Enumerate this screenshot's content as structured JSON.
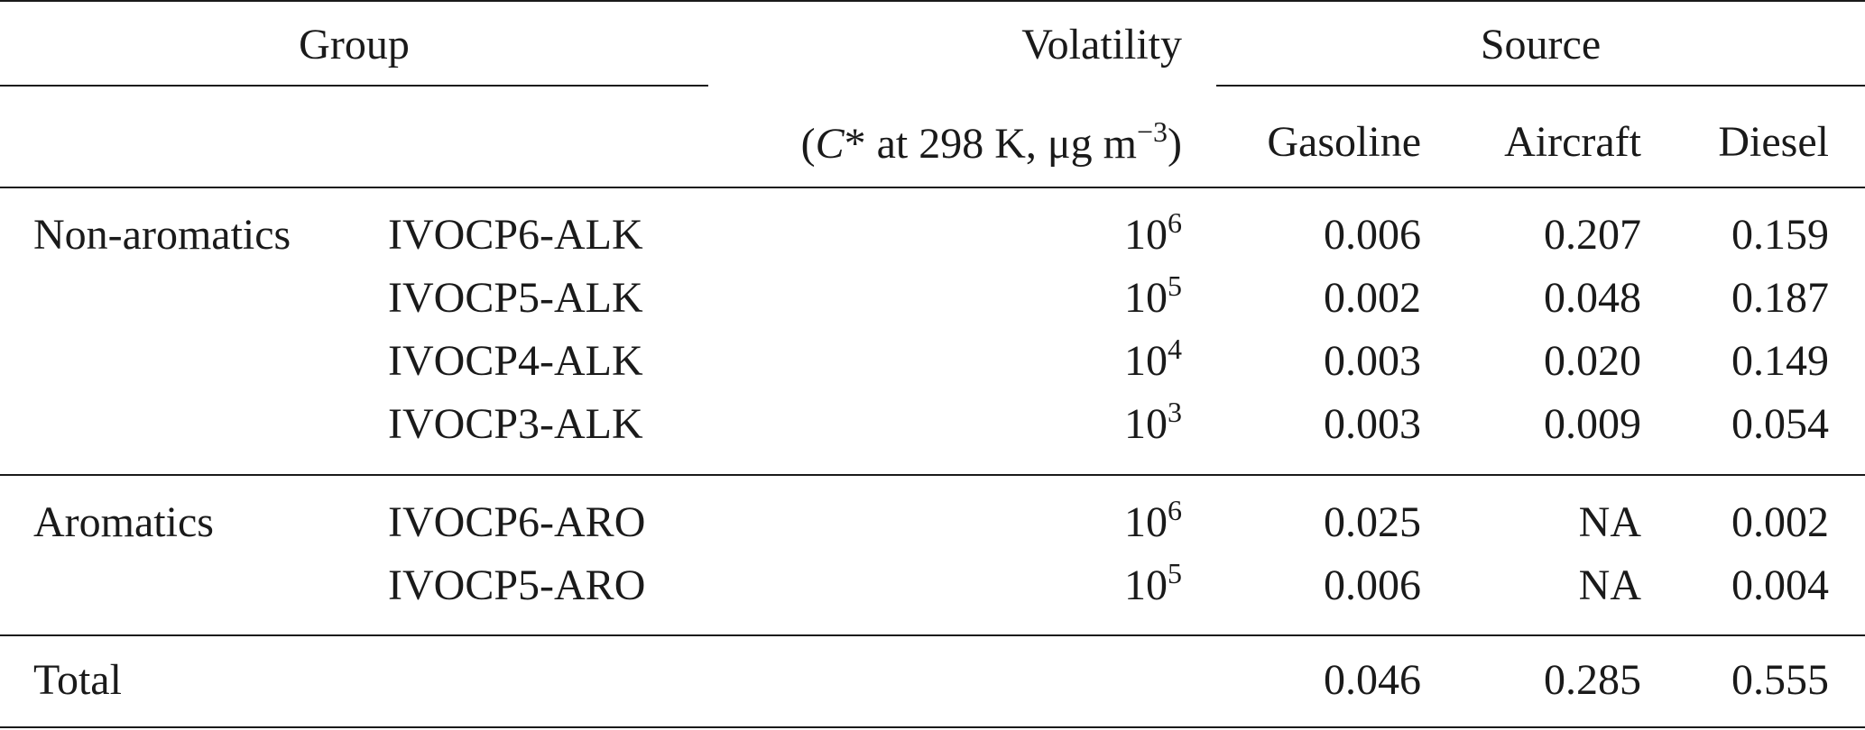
{
  "header": {
    "group": "Group",
    "volatility": "Volatility",
    "source": "Source",
    "unit_open": "(",
    "unit_c": "C",
    "unit_star": "*",
    "unit_mid": " at 298 K, μg m",
    "unit_exp": "−3",
    "unit_close": ")",
    "gasoline": "Gasoline",
    "aircraft": "Aircraft",
    "diesel": "Diesel"
  },
  "rows": [
    {
      "group": "Non-aromatics",
      "species": "IVOCP6-ALK",
      "vol_base": "10",
      "vol_exp": "6",
      "gasoline": "0.006",
      "aircraft": "0.207",
      "diesel": "0.159"
    },
    {
      "group": "",
      "species": "IVOCP5-ALK",
      "vol_base": "10",
      "vol_exp": "5",
      "gasoline": "0.002",
      "aircraft": "0.048",
      "diesel": "0.187"
    },
    {
      "group": "",
      "species": "IVOCP4-ALK",
      "vol_base": "10",
      "vol_exp": "4",
      "gasoline": "0.003",
      "aircraft": "0.020",
      "diesel": "0.149"
    },
    {
      "group": "",
      "species": "IVOCP3-ALK",
      "vol_base": "10",
      "vol_exp": "3",
      "gasoline": "0.003",
      "aircraft": "0.009",
      "diesel": "0.054"
    },
    {
      "group": "Aromatics",
      "species": "IVOCP6-ARO",
      "vol_base": "10",
      "vol_exp": "6",
      "gasoline": "0.025",
      "aircraft": "NA",
      "diesel": "0.002"
    },
    {
      "group": "",
      "species": "IVOCP5-ARO",
      "vol_base": "10",
      "vol_exp": "5",
      "gasoline": "0.006",
      "aircraft": "NA",
      "diesel": "0.004"
    }
  ],
  "total": {
    "label": "Total",
    "gasoline": "0.046",
    "aircraft": "0.285",
    "diesel": "0.555"
  }
}
